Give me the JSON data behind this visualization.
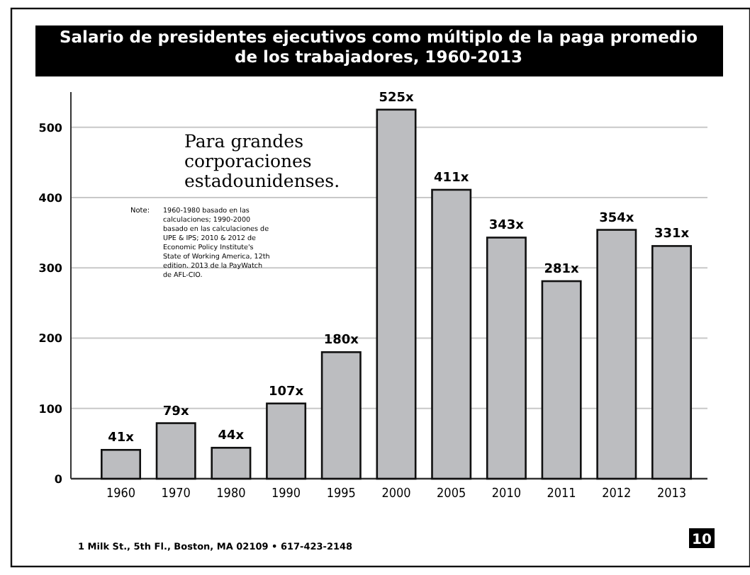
{
  "chart_data": {
    "type": "bar",
    "title": "Salario de presidentes ejecutivos como múltiplo de la paga promedio de los trabajadores, 1960-2013",
    "categories": [
      "1960",
      "1970",
      "1980",
      "1990",
      "1995",
      "2000",
      "2005",
      "2010",
      "2011",
      "2012",
      "2013"
    ],
    "values": [
      41,
      79,
      44,
      107,
      180,
      525,
      411,
      343,
      281,
      354,
      331
    ],
    "value_labels": [
      "41x",
      "79x",
      "44x",
      "107x",
      "180x",
      "525x",
      "411x",
      "343x",
      "281x",
      "354x",
      "331x"
    ],
    "color": "#bcbdc0",
    "ylim": [
      0,
      550
    ],
    "yticks": [
      0,
      100,
      200,
      300,
      400,
      500
    ],
    "grid": "y",
    "annotations": [
      "Para grandes corporaciones estadounidenses.",
      "Note:",
      "1960-1980 basado en las calculaciones; 1990-2000 basado en las calculaciones de UPE & IPS; 2010 & 2012 de Economic Policy Institute's State of Working America, 12th edition. 2013 de la PayWatch de AFL-CIO.",
      "1 Milk St., 5th Fl., Boston, MA 02109 • 617-423-2148",
      "10"
    ]
  }
}
